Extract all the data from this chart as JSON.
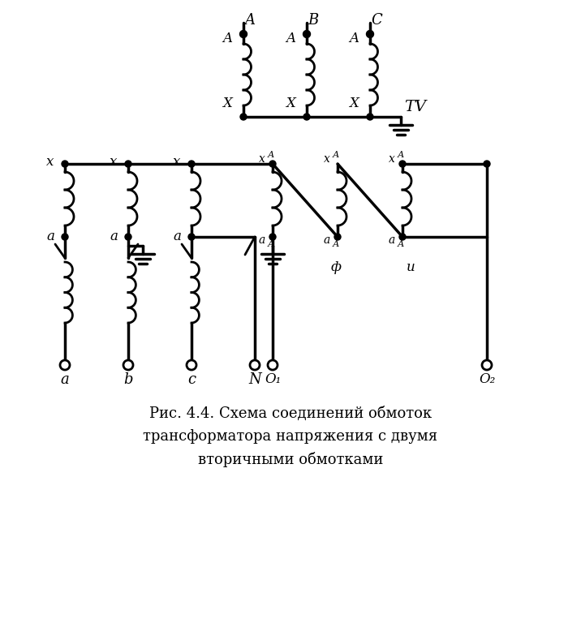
{
  "caption_line1": "Рис. 4.4. Схема соединений обмоток",
  "caption_line2": "трансформатора напряжения с двумя",
  "caption_line3": "вторичными обмотками",
  "bg_color": "#ffffff",
  "line_color": "#000000",
  "lw": 2.0,
  "lw_thick": 2.5,
  "fig_width": 7.16,
  "fig_height": 7.68,
  "dpi": 100
}
